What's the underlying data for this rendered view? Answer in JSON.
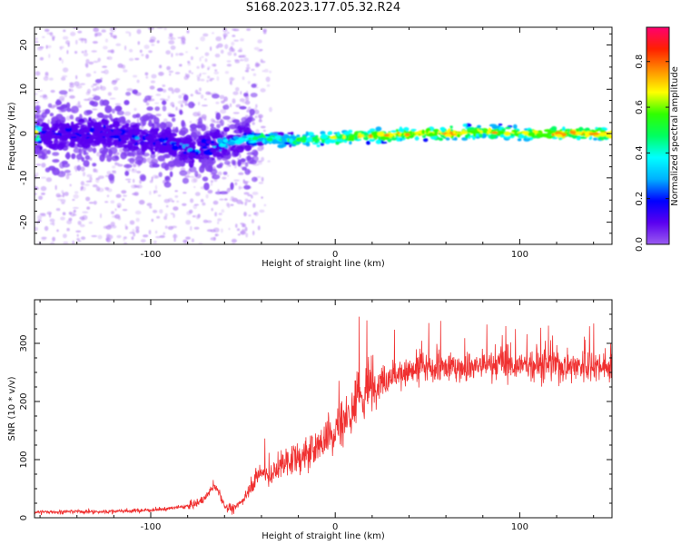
{
  "title": "S168.2023.177.05.32.R24",
  "colors": {
    "snr_line": "#f03030",
    "axis": "#111111"
  },
  "chart_data": [
    {
      "type": "heatmap",
      "xlabel": "Height of straight line (km)",
      "ylabel": "Frequency (Hz)",
      "xlim": [
        -163,
        150
      ],
      "ylim": [
        -25,
        24
      ],
      "x_ticks": [
        -100,
        0,
        100
      ],
      "y_ticks": [
        -20,
        -10,
        0,
        10,
        20
      ],
      "x_tick_labels": [
        "-100",
        "0",
        "100"
      ],
      "y_tick_labels": [
        "-20",
        "-10",
        "0",
        "10",
        "20"
      ],
      "colormap": [
        "#9a5cf0",
        "#5a00f0",
        "#0000ff",
        "#00b0ff",
        "#00ffff",
        "#00ff60",
        "#30ff00",
        "#ffff00",
        "#ff9000",
        "#ff2000",
        "#ff0070"
      ],
      "colorbar": {
        "label": "Normalized spectral amplitude",
        "range": [
          0,
          0.95
        ],
        "ticks": [
          0.0,
          0.2,
          0.4,
          0.6,
          0.8
        ],
        "tick_labels": [
          "0.0",
          "0.2",
          "0.4",
          "0.6",
          "0.8"
        ]
      },
      "ridge": [
        {
          "x": -160,
          "y": 0,
          "amp": 0.15
        },
        {
          "x": -120,
          "y": 0,
          "amp": 0.2
        },
        {
          "x": -90,
          "y": -2,
          "amp": 0.25
        },
        {
          "x": -78,
          "y": -4,
          "amp": 0.3
        },
        {
          "x": -60,
          "y": -2,
          "amp": 0.35
        },
        {
          "x": -40,
          "y": -1,
          "amp": 0.5
        },
        {
          "x": -20,
          "y": -1.5,
          "amp": 0.55
        },
        {
          "x": 0,
          "y": -1,
          "amp": 0.7
        },
        {
          "x": 20,
          "y": -0.5,
          "amp": 0.75
        },
        {
          "x": 40,
          "y": 0,
          "amp": 0.75
        },
        {
          "x": 60,
          "y": 0,
          "amp": 0.8
        },
        {
          "x": 80,
          "y": 0.5,
          "amp": 0.75
        },
        {
          "x": 100,
          "y": 0,
          "amp": 0.7
        },
        {
          "x": 120,
          "y": 0,
          "amp": 0.8
        },
        {
          "x": 150,
          "y": 0,
          "amp": 0.8
        }
      ]
    },
    {
      "type": "line",
      "xlabel": "Height of straight line (km)",
      "ylabel": "SNR (10 * v/v)",
      "xlim": [
        -163,
        150
      ],
      "ylim": [
        0,
        375
      ],
      "x_ticks": [
        -100,
        0,
        100
      ],
      "y_ticks": [
        0,
        100,
        200,
        300
      ],
      "x_tick_labels": [
        "-100",
        "0",
        "100"
      ],
      "y_tick_labels": [
        "0",
        "100",
        "200",
        "300"
      ],
      "series": [
        {
          "x": [
            -163,
            -150,
            -140,
            -130,
            -120,
            -110,
            -100,
            -90,
            -80,
            -75,
            -70,
            -66,
            -63,
            -60,
            -55,
            -50,
            -45,
            -40,
            -35,
            -30,
            -25,
            -20,
            -15,
            -10,
            -5,
            0,
            5,
            10,
            15,
            20,
            25,
            30,
            40,
            50,
            60,
            70,
            80,
            90,
            100,
            110,
            120,
            130,
            140,
            150
          ],
          "values": [
            10,
            10,
            11,
            10,
            11,
            12,
            13,
            16,
            20,
            25,
            35,
            55,
            45,
            20,
            15,
            30,
            60,
            80,
            70,
            90,
            100,
            100,
            110,
            120,
            140,
            150,
            170,
            190,
            210,
            225,
            235,
            245,
            250,
            255,
            258,
            260,
            262,
            263,
            262,
            262,
            262,
            262,
            262,
            262
          ]
        }
      ]
    }
  ]
}
